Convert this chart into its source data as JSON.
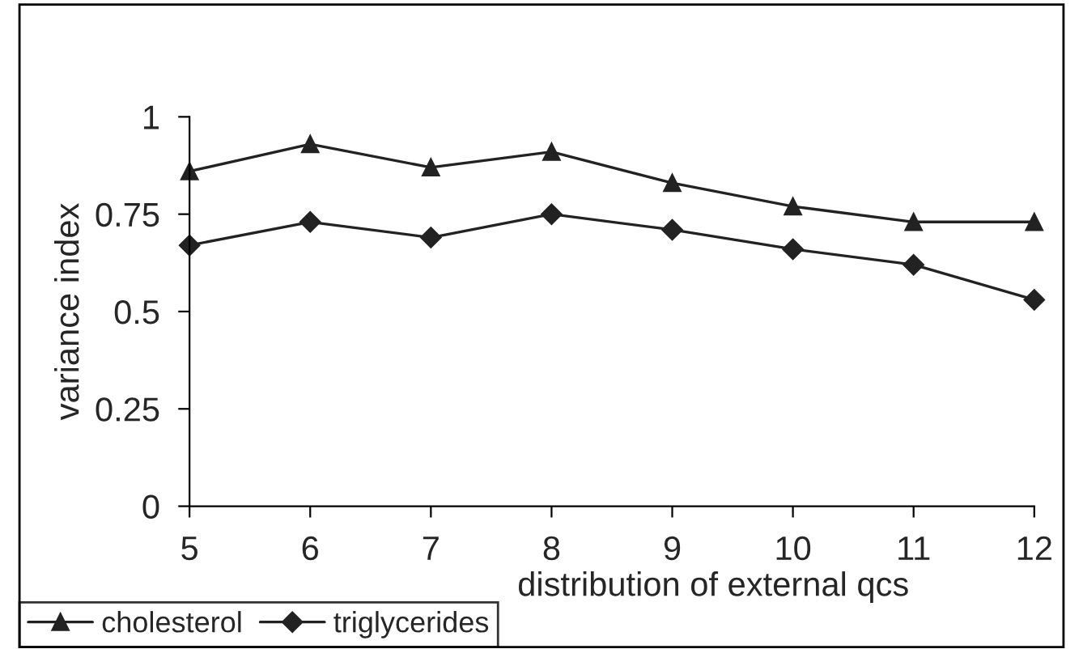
{
  "chart_data": {
    "type": "line",
    "xlabel": "distribution of external qcs",
    "ylabel": "variance index",
    "x": [
      5,
      6,
      7,
      8,
      9,
      10,
      11,
      12
    ],
    "series": [
      {
        "name": "cholesterol",
        "color": "#222222",
        "marker": "triangle",
        "values": [
          0.86,
          0.93,
          0.87,
          0.91,
          0.83,
          0.77,
          0.73,
          0.73
        ]
      },
      {
        "name": "triglycerides",
        "color": "#222222",
        "marker": "diamond",
        "values": [
          0.67,
          0.73,
          0.69,
          0.75,
          0.71,
          0.66,
          0.62,
          0.53
        ]
      }
    ],
    "xlim": [
      5,
      12
    ],
    "xticks": [
      5,
      6,
      7,
      8,
      9,
      10,
      11,
      12
    ],
    "ylim": [
      0,
      1
    ],
    "yticks": [
      0,
      0.25,
      0.5,
      0.75,
      1
    ],
    "grid": false,
    "legend": "bottom left",
    "line_style": "solid"
  }
}
